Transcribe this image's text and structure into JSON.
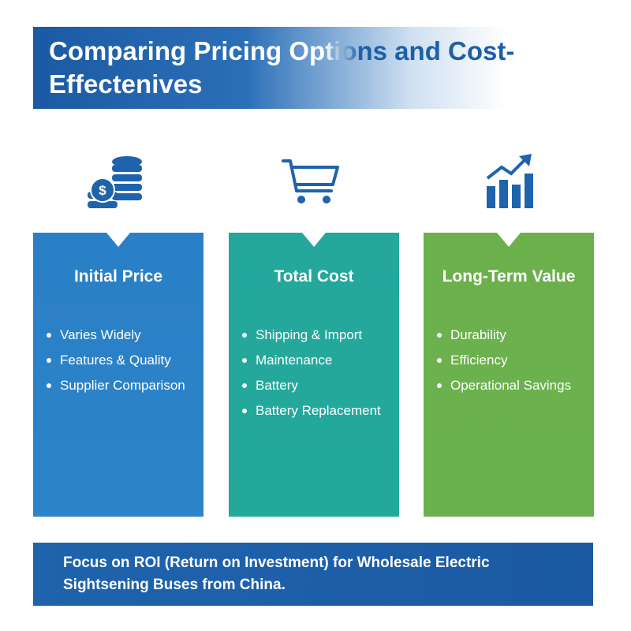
{
  "header": {
    "title": "Comparing Pricing Options and Cost-Effectenives"
  },
  "cards": [
    {
      "title": "Initial Price",
      "items": [
        "Varies Widely",
        "Features & Quality",
        "Supplier Comparison"
      ]
    },
    {
      "title": "Total Cost",
      "items": [
        "Shipping & Import",
        "Maintenance",
        "Battery",
        "Battery Replacement"
      ]
    },
    {
      "title": "Long-Term Value",
      "items": [
        "Durability",
        "Efficiency",
        "Operational Savings"
      ]
    }
  ],
  "footer": {
    "text": "Focus on ROI (Return on Investment) for Wholesale Electric Sightsening Buses from China."
  }
}
